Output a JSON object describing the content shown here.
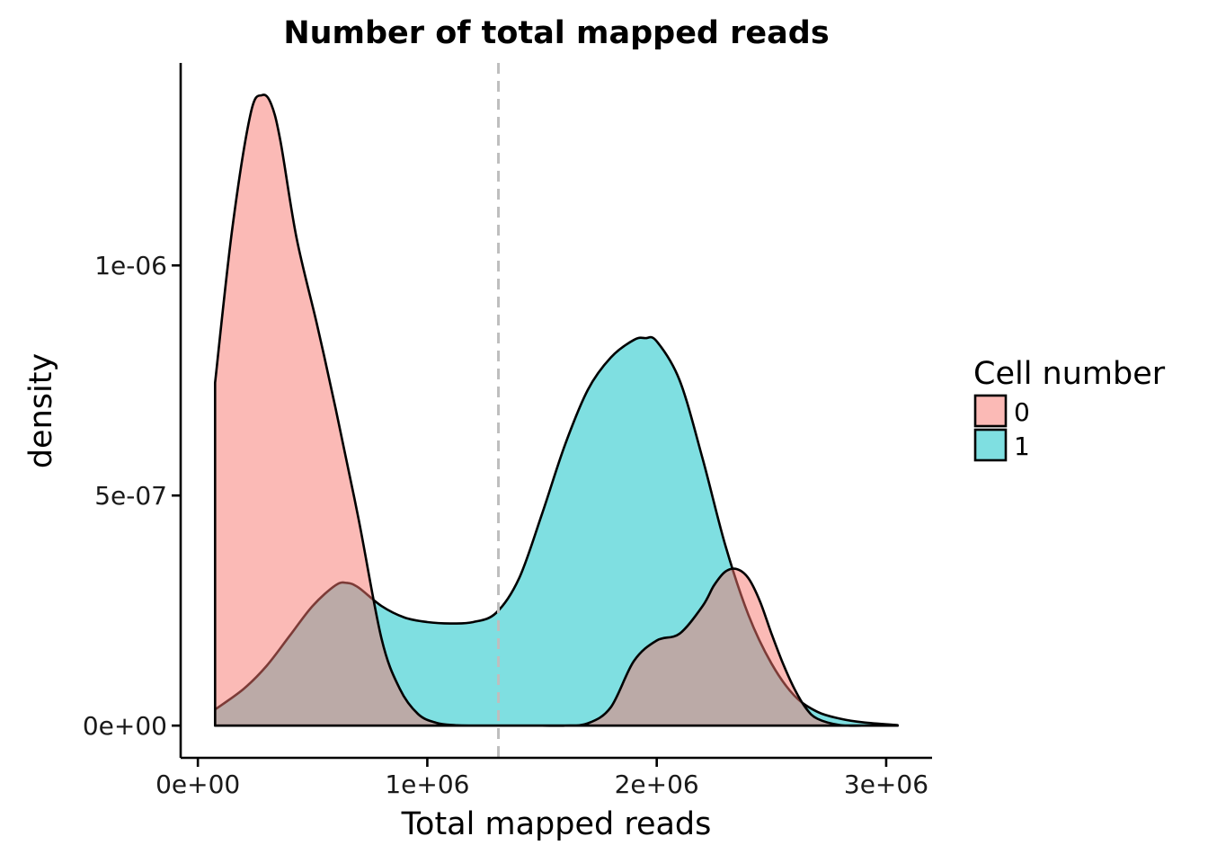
{
  "chart_data": {
    "type": "area",
    "subtype": "density",
    "title": "Number of total mapped reads",
    "xlabel": "Total mapped reads",
    "ylabel": "density",
    "xlim": [
      -75000,
      3200000
    ],
    "ylim": [
      -7e-08,
      1.44e-06
    ],
    "x_ticks": [
      {
        "value": 0,
        "label": "0e+00"
      },
      {
        "value": 1000000,
        "label": "1e+06"
      },
      {
        "value": 2000000,
        "label": "2e+06"
      },
      {
        "value": 3000000,
        "label": "3e+06"
      }
    ],
    "y_ticks": [
      {
        "value": 0,
        "label": "0e+00"
      },
      {
        "value": 5e-07,
        "label": "5e-07"
      },
      {
        "value": 1e-06,
        "label": "1e-06"
      }
    ],
    "reference_line": {
      "x": 1310000,
      "style": "dashed",
      "color": "#bebebe"
    },
    "grid": false,
    "legend": {
      "title": "Cell number",
      "position": "right",
      "entries": [
        {
          "label": "0",
          "color": "#F8766D"
        },
        {
          "label": "1",
          "color": "#00BFC4"
        }
      ]
    },
    "fill_opacity": 0.5,
    "series": [
      {
        "name": "0",
        "color": "#F8766D",
        "x": [
          75000,
          75000,
          150000,
          230000,
          280000,
          320000,
          360000,
          430000,
          520000,
          600000,
          700000,
          800000,
          880000,
          960000,
          1040000,
          1120000,
          1200000,
          1300000,
          1400000,
          1500000,
          1600000,
          1700000,
          1800000,
          1900000,
          2000000,
          2100000,
          2200000,
          2250000,
          2300000,
          2350000,
          2400000,
          2450000,
          2500000,
          2550000,
          2600000,
          2650000,
          2700000,
          2800000,
          2900000,
          3050000
        ],
        "y": [
          0,
          7.45e-07,
          1.08e-06,
          1.33e-06,
          1.37e-06,
          1.35e-06,
          1.27e-06,
          1.06e-06,
          8.7e-07,
          6.9e-07,
          4.5e-07,
          1.9e-07,
          8e-08,
          2.5e-08,
          6e-09,
          1e-09,
          0,
          0,
          0,
          0,
          0,
          5e-09,
          4e-08,
          1.4e-07,
          1.85e-07,
          2e-07,
          2.6e-07,
          3.05e-07,
          3.35e-07,
          3.4e-07,
          3.2e-07,
          2.7e-07,
          2e-07,
          1.35e-07,
          8e-08,
          3.8e-08,
          1.5e-08,
          1e-09,
          0,
          0
        ]
      },
      {
        "name": "1",
        "color": "#00BFC4",
        "x": [
          75000,
          75000,
          200000,
          300000,
          400000,
          500000,
          600000,
          650000,
          700000,
          800000,
          900000,
          1000000,
          1100000,
          1200000,
          1300000,
          1400000,
          1500000,
          1600000,
          1700000,
          1800000,
          1900000,
          1950000,
          2000000,
          2100000,
          2200000,
          2300000,
          2400000,
          2500000,
          2600000,
          2700000,
          2800000,
          2900000,
          3050000
        ],
        "y": [
          0,
          3.5e-08,
          8e-08,
          1.3e-07,
          1.95e-07,
          2.6e-07,
          3.05e-07,
          3.1e-07,
          3e-07,
          2.6e-07,
          2.35e-07,
          2.25e-07,
          2.22e-07,
          2.25e-07,
          2.45e-07,
          3.2e-07,
          4.6e-07,
          6.1e-07,
          7.3e-07,
          8e-07,
          8.38e-07,
          8.42e-07,
          8.35e-07,
          7.5e-07,
          5.8e-07,
          3.9e-07,
          2.4e-07,
          1.35e-07,
          6.5e-08,
          3e-08,
          1.5e-08,
          7e-09,
          1e-09
        ]
      }
    ]
  }
}
